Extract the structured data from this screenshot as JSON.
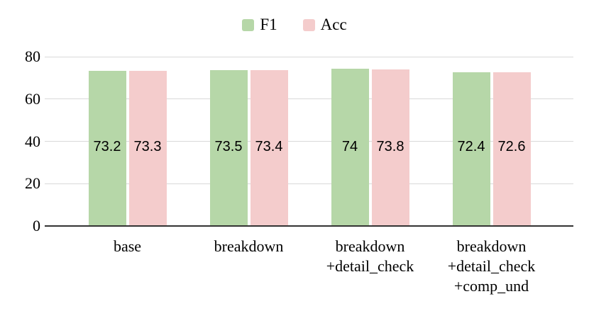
{
  "chart_data": {
    "type": "bar",
    "title": "",
    "categories": [
      "base",
      "breakdown",
      "breakdown\n+detail_check",
      "breakdown\n+detail_check\n+comp_und"
    ],
    "series": [
      {
        "name": "F1",
        "color": "#b6d7a8",
        "values": [
          73.2,
          73.5,
          74,
          72.4
        ]
      },
      {
        "name": "Acc",
        "color": "#f4cccc",
        "values": [
          73.3,
          73.4,
          73.8,
          72.6
        ]
      }
    ],
    "xlabel": "",
    "ylabel": "",
    "ylim": [
      0,
      80
    ],
    "y_ticks": [
      0,
      20,
      40,
      60,
      80
    ],
    "legend_position": "top",
    "grid": "horizontal",
    "gridline_color": "#d9d9d9",
    "axis_line_color": "#333333",
    "text_color": "#000000",
    "background_color": "#ffffff"
  }
}
